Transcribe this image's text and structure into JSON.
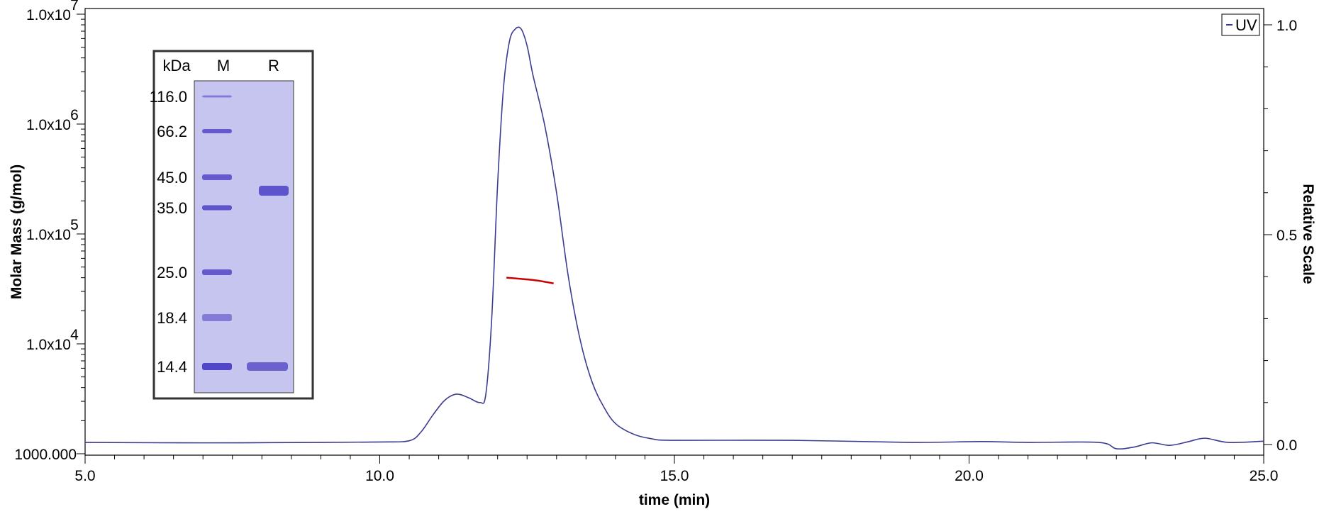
{
  "chart_data": {
    "type": "line",
    "title": "",
    "xlabel": "time (min)",
    "ylabel_left": "Molar Mass (g/mol)",
    "ylabel_right": "Relative Scale",
    "xlim": [
      5.0,
      25.0
    ],
    "x_ticks": [
      "5.0",
      "10.0",
      "15.0",
      "20.0",
      "25.0"
    ],
    "y_left_scale": "log",
    "y_left_lim": [
      1000,
      10000000
    ],
    "y_left_ticks": [
      {
        "value": 1000,
        "mantissa": "1000.000",
        "exp": ""
      },
      {
        "value": 10000,
        "mantissa": "1.0x10",
        "exp": "4"
      },
      {
        "value": 100000,
        "mantissa": "1.0x10",
        "exp": "5"
      },
      {
        "value": 1000000,
        "mantissa": "1.0x10",
        "exp": "6"
      },
      {
        "value": 10000000,
        "mantissa": "1.0x10",
        "exp": "7"
      }
    ],
    "y_right_lim": [
      -0.02,
      1.04
    ],
    "y_right_ticks": [
      "0.0",
      "0.5",
      "1.0"
    ],
    "legend": {
      "position": "top-right",
      "label": "UV"
    },
    "series": [
      {
        "name": "UV",
        "axis": "right",
        "color": "#3b3b8f",
        "points": [
          [
            5.0,
            0.005
          ],
          [
            7.0,
            0.004
          ],
          [
            9.0,
            0.005
          ],
          [
            10.0,
            0.006
          ],
          [
            10.5,
            0.009
          ],
          [
            10.7,
            0.03
          ],
          [
            10.9,
            0.07
          ],
          [
            11.1,
            0.105
          ],
          [
            11.3,
            0.12
          ],
          [
            11.5,
            0.112
          ],
          [
            11.7,
            0.1
          ],
          [
            11.8,
            0.12
          ],
          [
            11.9,
            0.3
          ],
          [
            12.0,
            0.62
          ],
          [
            12.1,
            0.85
          ],
          [
            12.2,
            0.96
          ],
          [
            12.3,
            0.99
          ],
          [
            12.4,
            0.99
          ],
          [
            12.5,
            0.95
          ],
          [
            12.6,
            0.88
          ],
          [
            12.8,
            0.76
          ],
          [
            13.0,
            0.6
          ],
          [
            13.2,
            0.4
          ],
          [
            13.4,
            0.25
          ],
          [
            13.6,
            0.15
          ],
          [
            13.8,
            0.09
          ],
          [
            14.0,
            0.05
          ],
          [
            14.3,
            0.025
          ],
          [
            14.6,
            0.014
          ],
          [
            15.0,
            0.01
          ],
          [
            17.0,
            0.01
          ],
          [
            19.0,
            0.005
          ],
          [
            20.2,
            0.007
          ],
          [
            21.0,
            0.005
          ],
          [
            22.2,
            0.005
          ],
          [
            22.5,
            -0.01
          ],
          [
            22.8,
            -0.006
          ],
          [
            23.1,
            0.004
          ],
          [
            23.4,
            -0.002
          ],
          [
            23.7,
            0.006
          ],
          [
            24.0,
            0.015
          ],
          [
            24.4,
            0.005
          ],
          [
            25.0,
            0.008
          ]
        ]
      },
      {
        "name": "Molar Mass",
        "axis": "left",
        "color": "#cc0000",
        "points": [
          [
            12.15,
            40000
          ],
          [
            12.4,
            39000
          ],
          [
            12.7,
            37500
          ],
          [
            12.95,
            35500
          ]
        ]
      }
    ],
    "inset_gel": {
      "unit_label": "kDa",
      "lane_labels": [
        "M",
        "R"
      ],
      "marker_labels": [
        "116.0",
        "66.2",
        "45.0",
        "35.0",
        "25.0",
        "18.4",
        "14.4"
      ],
      "colors": {
        "gel": "#c5c5f0",
        "band": "#4b3fc4"
      }
    }
  }
}
